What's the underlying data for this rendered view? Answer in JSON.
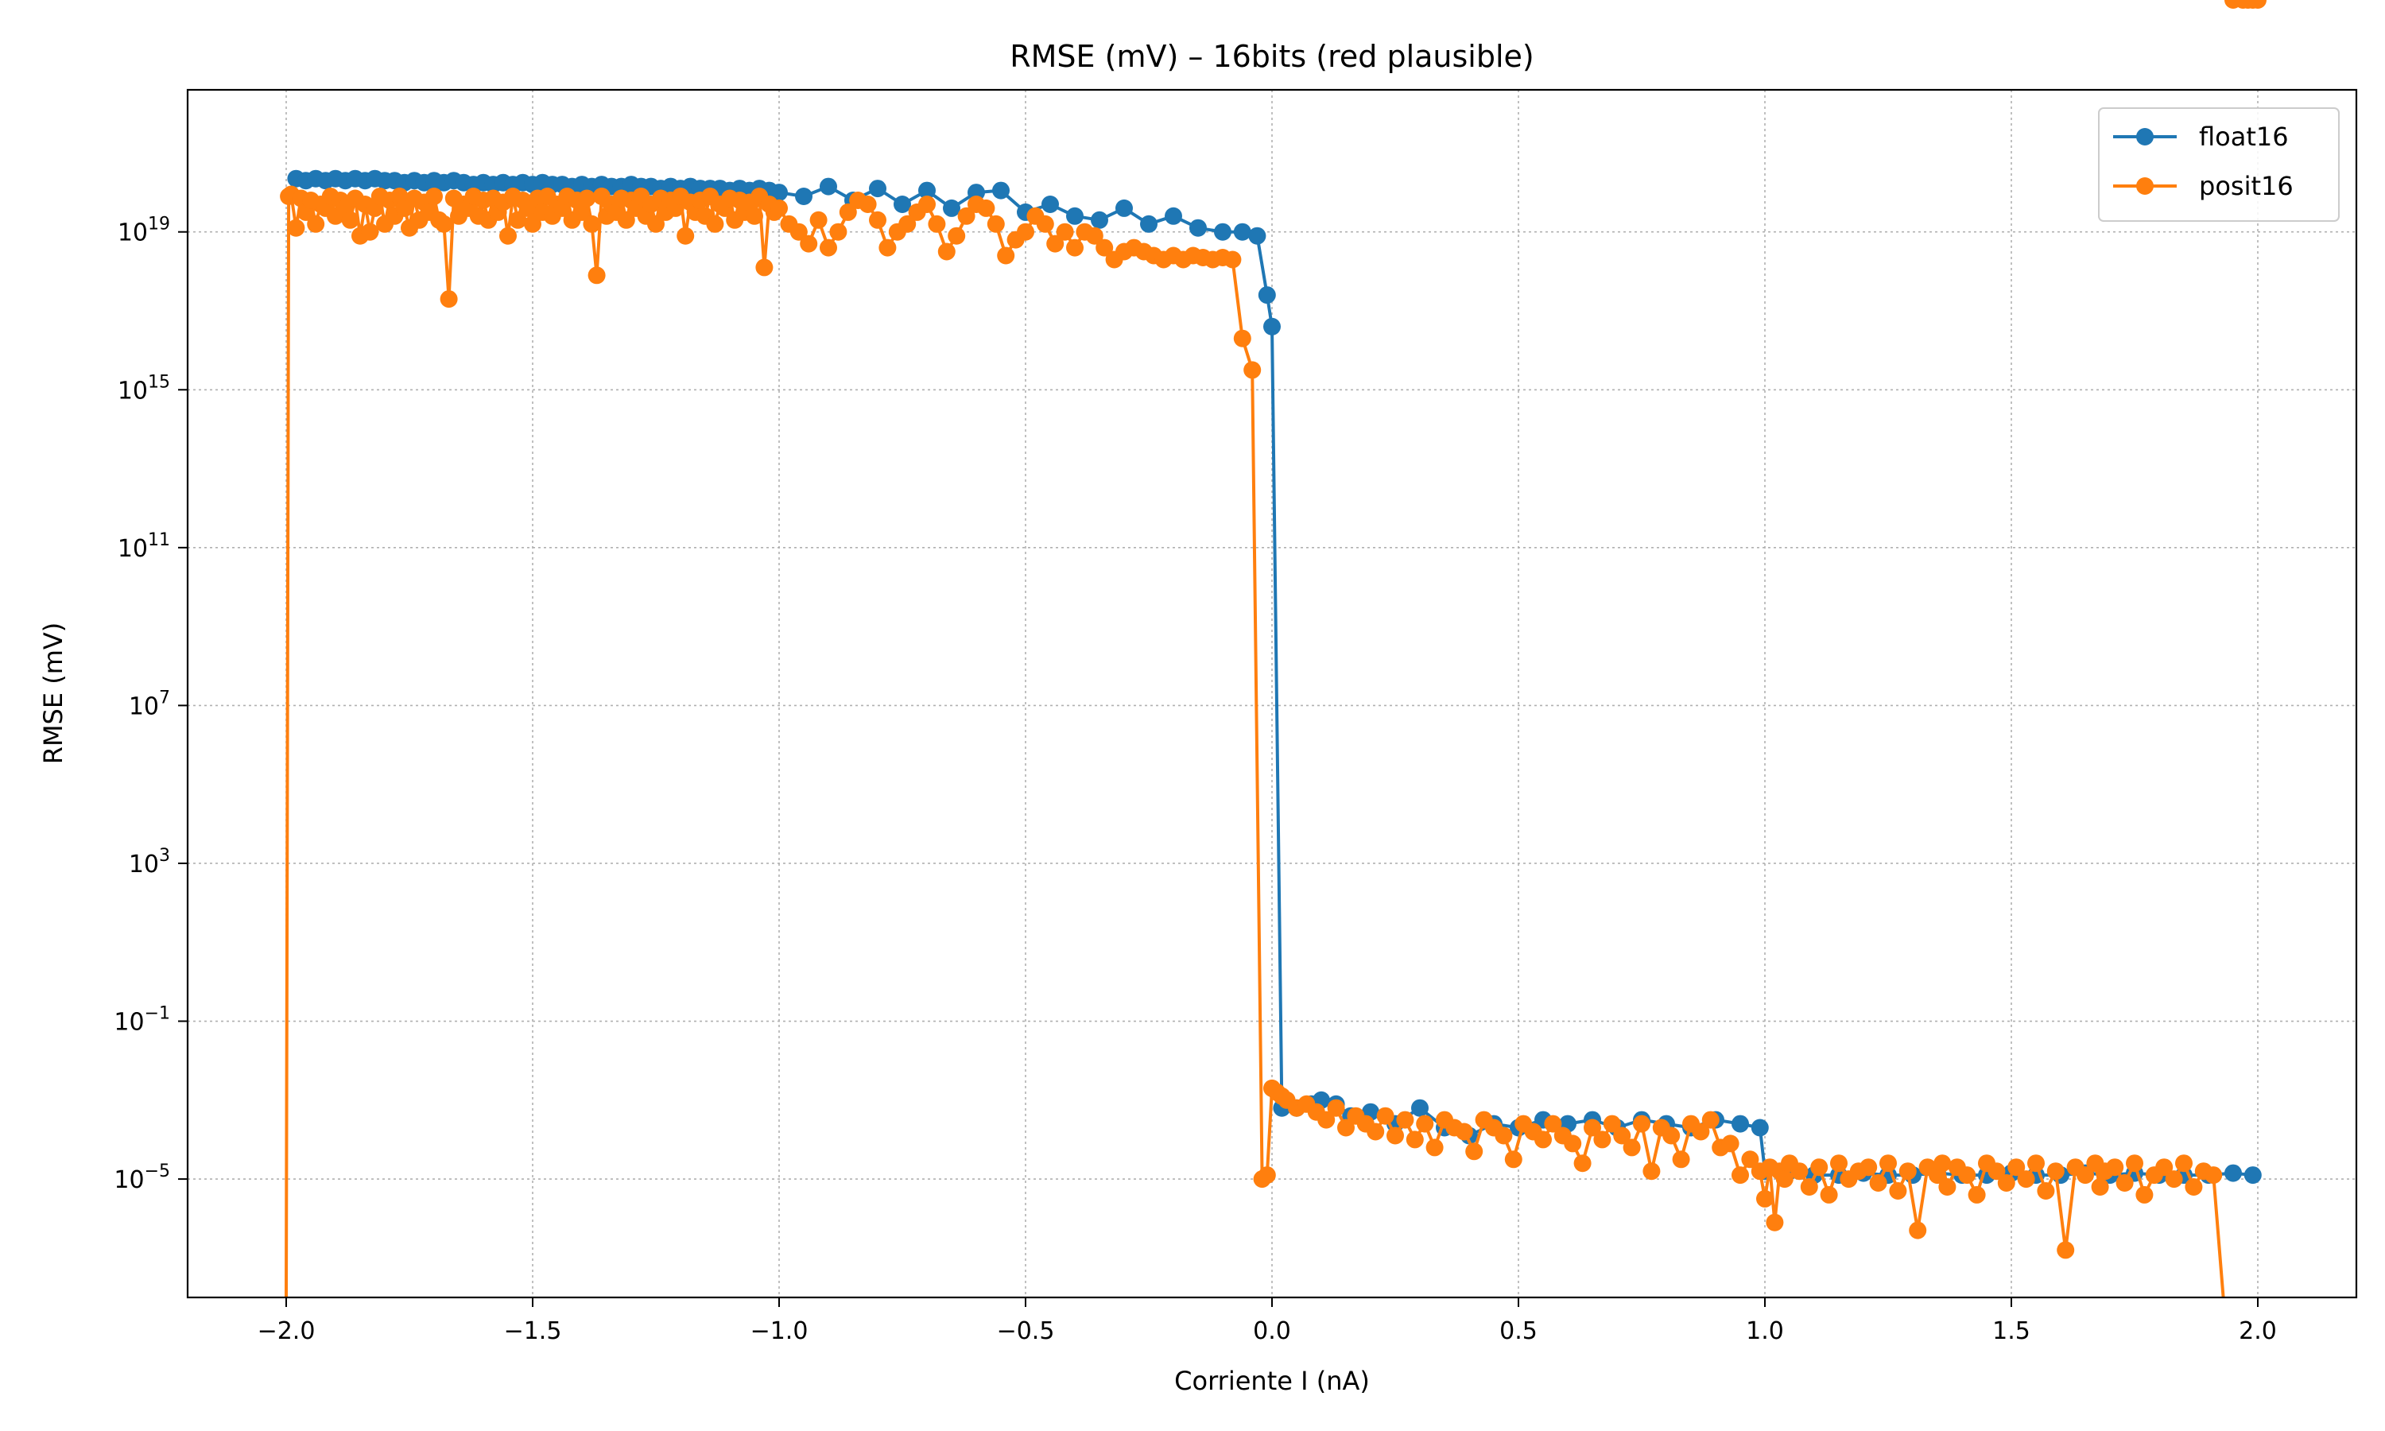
{
  "chart_data": {
    "type": "line",
    "title": "RMSE (mV) – 16bits (red plausible)",
    "xlabel": "Corriente I (nA)",
    "ylabel": "RMSE (mV)",
    "xlim": [
      -2.2,
      2.2
    ],
    "ylim_log10": [
      -8.0,
      22.6
    ],
    "y_scale": "log",
    "grid": true,
    "legend_position": "upper right",
    "x_ticks": [
      {
        "value": -2.0,
        "label": "−2.0"
      },
      {
        "value": -1.5,
        "label": "−1.5"
      },
      {
        "value": -1.0,
        "label": "−1.0"
      },
      {
        "value": -0.5,
        "label": "−0.5"
      },
      {
        "value": 0.0,
        "label": "0.0"
      },
      {
        "value": 0.5,
        "label": "0.5"
      },
      {
        "value": 1.0,
        "label": "1.0"
      },
      {
        "value": 1.5,
        "label": "1.5"
      },
      {
        "value": 2.0,
        "label": "2.0"
      }
    ],
    "y_ticks": [
      {
        "exp": -5,
        "base": "10",
        "sup": "−5"
      },
      {
        "exp": -1,
        "base": "10",
        "sup": "−1"
      },
      {
        "exp": 3,
        "base": "10",
        "sup": "3"
      },
      {
        "exp": 7,
        "base": "10",
        "sup": "7"
      },
      {
        "exp": 11,
        "base": "10",
        "sup": "11"
      },
      {
        "exp": 15,
        "base": "10",
        "sup": "15"
      },
      {
        "exp": 19,
        "base": "10",
        "sup": "19"
      }
    ],
    "series": [
      {
        "name": "float16",
        "color": "#1f77b4",
        "x": [
          -1.98,
          -1.96,
          -1.94,
          -1.92,
          -1.9,
          -1.88,
          -1.86,
          -1.84,
          -1.82,
          -1.8,
          -1.78,
          -1.76,
          -1.74,
          -1.72,
          -1.7,
          -1.68,
          -1.66,
          -1.64,
          -1.62,
          -1.6,
          -1.58,
          -1.56,
          -1.54,
          -1.52,
          -1.5,
          -1.48,
          -1.46,
          -1.44,
          -1.42,
          -1.4,
          -1.38,
          -1.36,
          -1.34,
          -1.32,
          -1.3,
          -1.28,
          -1.26,
          -1.24,
          -1.22,
          -1.2,
          -1.18,
          -1.16,
          -1.14,
          -1.12,
          -1.1,
          -1.08,
          -1.06,
          -1.04,
          -1.02,
          -1.0,
          -0.95,
          -0.9,
          -0.85,
          -0.8,
          -0.75,
          -0.7,
          -0.65,
          -0.6,
          -0.55,
          -0.5,
          -0.45,
          -0.4,
          -0.35,
          -0.3,
          -0.25,
          -0.2,
          -0.15,
          -0.1,
          -0.06,
          -0.03,
          -0.01,
          0.0,
          0.02,
          0.05,
          0.08,
          0.1,
          0.13,
          0.16,
          0.2,
          0.25,
          0.3,
          0.35,
          0.4,
          0.45,
          0.5,
          0.55,
          0.6,
          0.65,
          0.7,
          0.75,
          0.8,
          0.85,
          0.9,
          0.95,
          0.99,
          1.0,
          1.05,
          1.1,
          1.15,
          1.2,
          1.25,
          1.3,
          1.35,
          1.4,
          1.45,
          1.5,
          1.55,
          1.6,
          1.65,
          1.7,
          1.75,
          1.8,
          1.85,
          1.9,
          1.95,
          1.99
        ],
        "log10_y": [
          20.35,
          20.3,
          20.35,
          20.3,
          20.35,
          20.3,
          20.35,
          20.3,
          20.35,
          20.3,
          20.3,
          20.25,
          20.3,
          20.25,
          20.3,
          20.25,
          20.3,
          20.25,
          20.2,
          20.25,
          20.2,
          20.25,
          20.2,
          20.25,
          20.2,
          20.25,
          20.2,
          20.2,
          20.15,
          20.2,
          20.15,
          20.2,
          20.15,
          20.15,
          20.2,
          20.15,
          20.15,
          20.1,
          20.15,
          20.1,
          20.15,
          20.1,
          20.1,
          20.1,
          20.05,
          20.1,
          20.05,
          20.1,
          20.05,
          20.0,
          19.9,
          20.15,
          19.8,
          20.1,
          19.7,
          20.05,
          19.6,
          20.0,
          20.05,
          19.5,
          19.7,
          19.4,
          19.3,
          19.6,
          19.2,
          19.4,
          19.1,
          19.0,
          19.0,
          18.9,
          17.4,
          16.6,
          -3.2,
          -3.2,
          -3.1,
          -3.0,
          -3.1,
          -3.4,
          -3.3,
          -3.6,
          -3.2,
          -3.7,
          -3.9,
          -3.6,
          -3.7,
          -3.5,
          -3.6,
          -3.5,
          -3.7,
          -3.5,
          -3.6,
          -3.7,
          -3.5,
          -3.6,
          -3.7,
          -4.8,
          -4.8,
          -4.9,
          -4.9,
          -4.85,
          -4.9,
          -4.9,
          -4.85,
          -4.9,
          -4.9,
          -4.85,
          -4.9,
          -4.9,
          -4.85,
          -4.9,
          -4.85,
          -4.9,
          -4.9,
          -4.9,
          -4.85,
          -4.9
        ]
      },
      {
        "name": "posit16",
        "color": "#ff7f0e",
        "x": [
          -2.0,
          -1.995,
          -1.99,
          -1.98,
          -1.97,
          -1.96,
          -1.95,
          -1.94,
          -1.93,
          -1.92,
          -1.91,
          -1.9,
          -1.89,
          -1.88,
          -1.87,
          -1.86,
          -1.85,
          -1.84,
          -1.83,
          -1.82,
          -1.81,
          -1.8,
          -1.79,
          -1.78,
          -1.77,
          -1.76,
          -1.75,
          -1.74,
          -1.73,
          -1.72,
          -1.71,
          -1.7,
          -1.69,
          -1.68,
          -1.67,
          -1.66,
          -1.65,
          -1.64,
          -1.63,
          -1.62,
          -1.61,
          -1.6,
          -1.59,
          -1.58,
          -1.57,
          -1.56,
          -1.55,
          -1.54,
          -1.53,
          -1.52,
          -1.51,
          -1.5,
          -1.49,
          -1.48,
          -1.47,
          -1.46,
          -1.45,
          -1.44,
          -1.43,
          -1.42,
          -1.41,
          -1.4,
          -1.39,
          -1.38,
          -1.37,
          -1.36,
          -1.35,
          -1.34,
          -1.33,
          -1.32,
          -1.31,
          -1.3,
          -1.29,
          -1.28,
          -1.27,
          -1.26,
          -1.25,
          -1.24,
          -1.23,
          -1.22,
          -1.21,
          -1.2,
          -1.19,
          -1.18,
          -1.17,
          -1.16,
          -1.15,
          -1.14,
          -1.13,
          -1.12,
          -1.11,
          -1.1,
          -1.09,
          -1.08,
          -1.07,
          -1.06,
          -1.05,
          -1.04,
          -1.03,
          -1.02,
          -1.01,
          -1.0,
          -0.98,
          -0.96,
          -0.94,
          -0.92,
          -0.9,
          -0.88,
          -0.86,
          -0.84,
          -0.82,
          -0.8,
          -0.78,
          -0.76,
          -0.74,
          -0.72,
          -0.7,
          -0.68,
          -0.66,
          -0.64,
          -0.62,
          -0.6,
          -0.58,
          -0.56,
          -0.54,
          -0.52,
          -0.5,
          -0.48,
          -0.46,
          -0.44,
          -0.42,
          -0.4,
          -0.38,
          -0.36,
          -0.34,
          -0.32,
          -0.3,
          -0.28,
          -0.26,
          -0.24,
          -0.22,
          -0.2,
          -0.18,
          -0.16,
          -0.14,
          -0.12,
          -0.1,
          -0.08,
          -0.06,
          -0.04,
          -0.02,
          -0.01,
          0.0,
          0.01,
          0.02,
          0.03,
          0.05,
          0.07,
          0.09,
          0.11,
          0.13,
          0.15,
          0.17,
          0.19,
          0.21,
          0.23,
          0.25,
          0.27,
          0.29,
          0.31,
          0.33,
          0.35,
          0.37,
          0.39,
          0.41,
          0.43,
          0.45,
          0.47,
          0.49,
          0.51,
          0.53,
          0.55,
          0.57,
          0.59,
          0.61,
          0.63,
          0.65,
          0.67,
          0.69,
          0.71,
          0.73,
          0.75,
          0.77,
          0.79,
          0.81,
          0.83,
          0.85,
          0.87,
          0.89,
          0.91,
          0.93,
          0.95,
          0.97,
          0.99,
          1.0,
          1.01,
          1.02,
          1.03,
          1.04,
          1.05,
          1.07,
          1.09,
          1.11,
          1.13,
          1.15,
          1.17,
          1.19,
          1.21,
          1.23,
          1.25,
          1.27,
          1.29,
          1.31,
          1.33,
          1.35,
          1.36,
          1.37,
          1.39,
          1.41,
          1.43,
          1.45,
          1.47,
          1.49,
          1.51,
          1.53,
          1.55,
          1.57,
          1.59,
          1.61,
          1.63,
          1.65,
          1.67,
          1.68,
          1.69,
          1.71,
          1.73,
          1.75,
          1.77,
          1.79,
          1.81,
          1.83,
          1.85,
          1.87,
          1.89,
          1.91,
          1.93,
          1.95,
          1.97,
          1.98,
          1.99,
          2.0
        ],
        "log10_y": [
          -9.0,
          19.9,
          19.95,
          19.1,
          19.85,
          19.5,
          19.8,
          19.2,
          19.7,
          19.6,
          19.9,
          19.4,
          19.8,
          19.6,
          19.3,
          19.85,
          18.9,
          19.7,
          19.0,
          19.6,
          19.9,
          19.2,
          19.8,
          19.4,
          19.9,
          19.6,
          19.1,
          19.85,
          19.3,
          19.75,
          19.5,
          19.9,
          19.3,
          19.2,
          17.3,
          19.85,
          19.4,
          19.7,
          19.6,
          19.9,
          19.4,
          19.8,
          19.3,
          19.85,
          19.5,
          19.75,
          18.9,
          19.9,
          19.3,
          19.8,
          19.6,
          19.2,
          19.85,
          19.5,
          19.9,
          19.4,
          19.7,
          19.6,
          19.9,
          19.3,
          19.8,
          19.5,
          19.85,
          19.2,
          17.9,
          19.9,
          19.4,
          19.7,
          19.5,
          19.85,
          19.3,
          19.8,
          19.6,
          19.9,
          19.4,
          19.7,
          19.2,
          19.85,
          19.5,
          19.8,
          19.6,
          19.9,
          18.9,
          19.75,
          19.5,
          19.8,
          19.4,
          19.9,
          19.2,
          19.7,
          19.6,
          19.85,
          19.3,
          19.8,
          19.5,
          19.75,
          19.4,
          19.9,
          18.1,
          19.7,
          19.5,
          19.6,
          19.2,
          19.0,
          18.7,
          19.3,
          18.6,
          19.0,
          19.5,
          19.8,
          19.7,
          19.3,
          18.6,
          19.0,
          19.2,
          19.5,
          19.7,
          19.2,
          18.5,
          18.9,
          19.4,
          19.7,
          19.6,
          19.2,
          18.4,
          18.8,
          19.0,
          19.4,
          19.2,
          18.7,
          19.0,
          18.6,
          19.0,
          18.9,
          18.6,
          18.3,
          18.5,
          18.6,
          18.5,
          18.4,
          18.3,
          18.4,
          18.3,
          18.4,
          18.35,
          18.3,
          18.35,
          18.3,
          16.3,
          15.5,
          -5.0,
          -4.9,
          -2.7,
          -2.8,
          -2.9,
          -3.0,
          -3.2,
          -3.1,
          -3.3,
          -3.5,
          -3.2,
          -3.7,
          -3.4,
          -3.6,
          -3.8,
          -3.4,
          -3.9,
          -3.5,
          -4.0,
          -3.6,
          -4.2,
          -3.5,
          -3.7,
          -3.8,
          -4.3,
          -3.5,
          -3.7,
          -3.9,
          -4.5,
          -3.6,
          -3.8,
          -4.0,
          -3.6,
          -3.9,
          -4.1,
          -4.6,
          -3.7,
          -4.0,
          -3.6,
          -3.9,
          -4.2,
          -3.6,
          -4.8,
          -3.7,
          -3.9,
          -4.5,
          -3.6,
          -3.8,
          -3.5,
          -4.2,
          -4.1,
          -4.9,
          -4.5,
          -4.8,
          -5.5,
          -4.7,
          -6.1,
          -4.8,
          -5.0,
          -4.6,
          -4.8,
          -5.2,
          -4.7,
          -5.4,
          -4.6,
          -5.0,
          -4.8,
          -4.7,
          -5.1,
          -4.6,
          -5.3,
          -4.8,
          -6.3,
          -4.7,
          -4.9,
          -4.6,
          -5.2,
          -4.7,
          -4.9,
          -5.4,
          -4.6,
          -4.8,
          -5.1,
          -4.7,
          -5.0,
          -4.6,
          -5.3,
          -4.8,
          -6.8,
          -4.7,
          -4.9,
          -4.6,
          -5.2,
          -4.8,
          -4.7,
          -5.1,
          -4.6,
          -5.4,
          -4.9,
          -4.7,
          -5.0,
          -4.6,
          -5.2,
          -4.8,
          -4.9,
          -9.0
        ]
      }
    ]
  }
}
